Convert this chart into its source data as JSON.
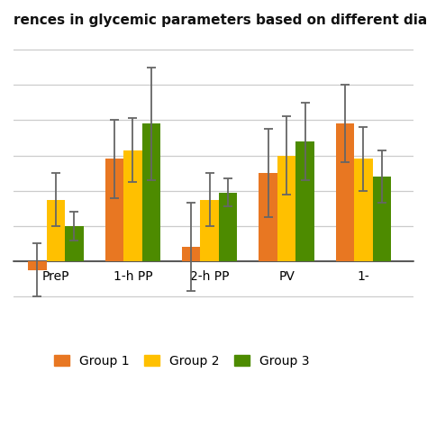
{
  "title": "rences in glycemic parameters based on different diagnostic strate",
  "categories": [
    "PreP",
    "1-h PP",
    "2-h PP",
    "PV",
    "1-"
  ],
  "groups": [
    "Group 1",
    "Group 2",
    "Group 3"
  ],
  "bar_colors": [
    "#E87722",
    "#FFC000",
    "#4D8B00"
  ],
  "values": [
    [
      -0.5,
      5.8,
      0.8,
      5.0,
      7.8
    ],
    [
      3.5,
      6.3,
      3.5,
      6.0,
      5.8
    ],
    [
      2.0,
      7.8,
      3.9,
      6.8,
      4.8
    ]
  ],
  "errors": [
    [
      1.5,
      2.2,
      2.5,
      2.5,
      2.2
    ],
    [
      1.5,
      1.8,
      1.5,
      2.2,
      1.8
    ],
    [
      0.8,
      3.2,
      0.8,
      2.2,
      1.5
    ]
  ],
  "ylim": [
    -3.5,
    13.0
  ],
  "background_color": "#ffffff",
  "grid_color": "#cccccc",
  "bar_width": 0.24,
  "legend_fontsize": 10,
  "title_fontsize": 11
}
